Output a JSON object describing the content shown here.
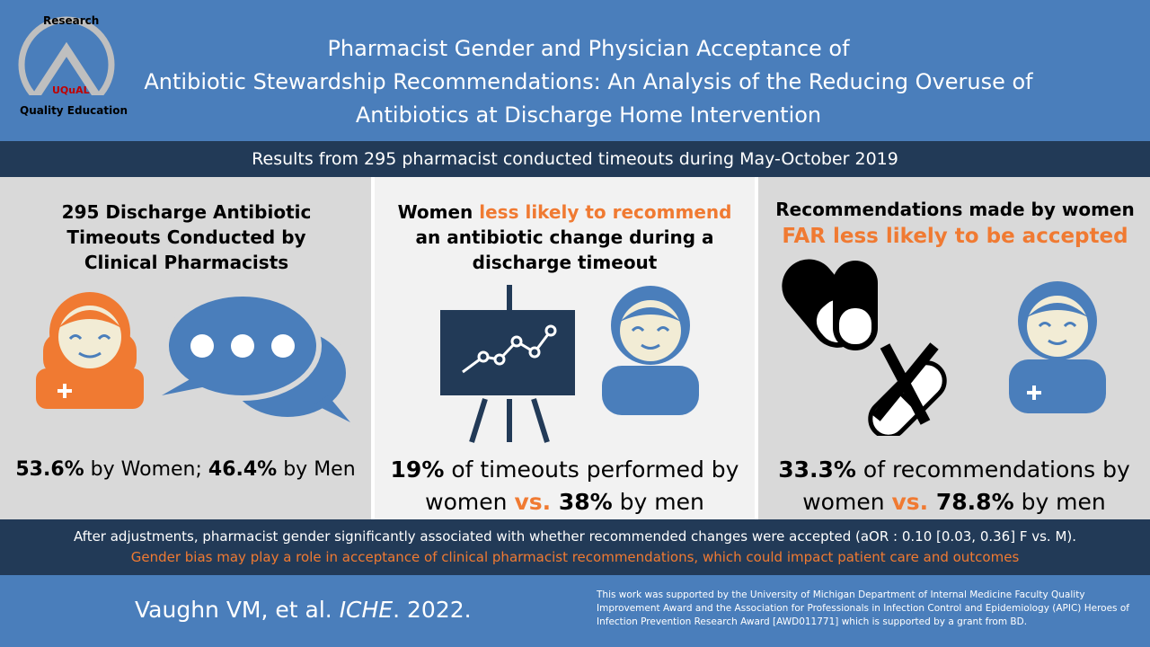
{
  "logo": {
    "top": "Research",
    "brand": "UQuAL",
    "bottom": "Quality Education"
  },
  "title": [
    "Pharmacist Gender and Physician Acceptance of",
    "Antibiotic Stewardship Recommendations: An Analysis of the Reducing Overuse of",
    "Antibiotics at Discharge Home Intervention"
  ],
  "subtitle": "Results from 295 pharmacist conducted timeouts during May-October 2019",
  "panels": [
    {
      "heading": [
        "295 Discharge Antibiotic Timeouts Conducted by Clinical Pharmacists"
      ],
      "finding": [
        "53.6%",
        " by Women; ",
        "46.4%",
        " by Men"
      ]
    },
    {
      "heading": [
        "Women ",
        "less likely to recommend",
        " an antibiotic change during a discharge timeout"
      ],
      "finding": [
        "19%",
        " of timeouts performed by women ",
        "vs.",
        " 38%",
        " by men"
      ]
    },
    {
      "heading": [
        "Recommendations made by women",
        "FAR less likely to be accepted"
      ],
      "finding": [
        "33.3%",
        " of recommendations by women ",
        "vs.",
        " 78.8%",
        " by men"
      ]
    }
  ],
  "conclusion": {
    "adjusted": "After adjustments, pharmacist gender  significantly associated with whether recommended changes were accepted (aOR : 0.10 [0.03, 0.36] F vs. M).",
    "implication": "Gender bias may play a role in acceptance of clinical pharmacist recommendations,  which could impact patient care and outcomes"
  },
  "citation": [
    "Vaughn VM, et al. ",
    "ICHE",
    ". 2022."
  ],
  "funding": "This work was supported by the University of Michigan Department of Internal Medicine Faculty Quality Improvement Award and the Association for Professionals in Infection Control and Epidemiology (APIC) Heroes of Infection Prevention Research Award [AWD011771] which is supported by a grant from BD."
}
